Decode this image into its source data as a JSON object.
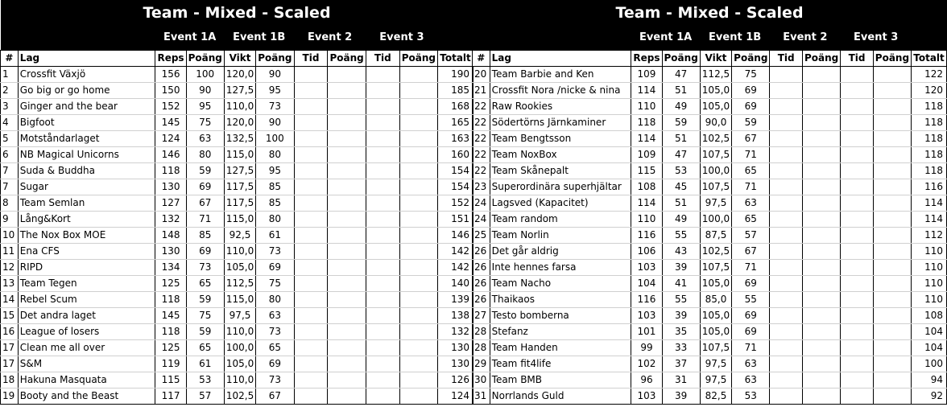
{
  "title": "Team - Mixed - Scaled",
  "events": [
    "Event 1A",
    "Event 1B",
    "Event 2",
    "Event 3"
  ],
  "columns": [
    "#",
    "Lag",
    "Reps",
    "Poäng",
    "Vikt",
    "Poäng",
    "Tid",
    "Poäng",
    "Tid",
    "Poäng",
    "Totalt"
  ],
  "left_rows": [
    [
      "1",
      "Crossfit Växjö",
      "156",
      "100",
      "120,0",
      "90",
      "",
      "",
      "",
      "",
      "190"
    ],
    [
      "2",
      "Go big or go home",
      "150",
      "90",
      "127,5",
      "95",
      "",
      "",
      "",
      "",
      "185"
    ],
    [
      "3",
      "Ginger and the bear",
      "152",
      "95",
      "110,0",
      "73",
      "",
      "",
      "",
      "",
      "168"
    ],
    [
      "4",
      "Bigfoot",
      "145",
      "75",
      "120,0",
      "90",
      "",
      "",
      "",
      "",
      "165"
    ],
    [
      "5",
      "Motståndarlaget",
      "124",
      "63",
      "132,5",
      "100",
      "",
      "",
      "",
      "",
      "163"
    ],
    [
      "6",
      "NB Magical Unicorns",
      "146",
      "80",
      "115,0",
      "80",
      "",
      "",
      "",
      "",
      "160"
    ],
    [
      "7",
      "Suda & Buddha",
      "118",
      "59",
      "127,5",
      "95",
      "",
      "",
      "",
      "",
      "154"
    ],
    [
      "7",
      "Sugar",
      "130",
      "69",
      "117,5",
      "85",
      "",
      "",
      "",
      "",
      "154"
    ],
    [
      "8",
      "Team Semlan",
      "127",
      "67",
      "117,5",
      "85",
      "",
      "",
      "",
      "",
      "152"
    ],
    [
      "9",
      "Lång&Kort",
      "132",
      "71",
      "115,0",
      "80",
      "",
      "",
      "",
      "",
      "151"
    ],
    [
      "10",
      "The Nox Box MOE",
      "148",
      "85",
      "92,5",
      "61",
      "",
      "",
      "",
      "",
      "146"
    ],
    [
      "11",
      "Ena CFS",
      "130",
      "69",
      "110,0",
      "73",
      "",
      "",
      "",
      "",
      "142"
    ],
    [
      "12",
      "RIPD",
      "134",
      "73",
      "105,0",
      "69",
      "",
      "",
      "",
      "",
      "142"
    ],
    [
      "13",
      "Team Tegen",
      "125",
      "65",
      "112,5",
      "75",
      "",
      "",
      "",
      "",
      "140"
    ],
    [
      "14",
      "Rebel Scum",
      "118",
      "59",
      "115,0",
      "80",
      "",
      "",
      "",
      "",
      "139"
    ],
    [
      "15",
      "Det andra laget",
      "145",
      "75",
      "97,5",
      "63",
      "",
      "",
      "",
      "",
      "138"
    ],
    [
      "16",
      "League of losers",
      "118",
      "59",
      "110,0",
      "73",
      "",
      "",
      "",
      "",
      "132"
    ],
    [
      "17",
      "Clean me all over",
      "125",
      "65",
      "100,0",
      "65",
      "",
      "",
      "",
      "",
      "130"
    ],
    [
      "17",
      "S&M",
      "119",
      "61",
      "105,0",
      "69",
      "",
      "",
      "",
      "",
      "130"
    ],
    [
      "18",
      "Hakuna Masquata",
      "115",
      "53",
      "110,0",
      "73",
      "",
      "",
      "",
      "",
      "126"
    ],
    [
      "19",
      "Booty and the Beast",
      "117",
      "57",
      "102,5",
      "67",
      "",
      "",
      "",
      "",
      "124"
    ]
  ],
  "right_rows": [
    [
      "20",
      "Team Barbie and Ken",
      "109",
      "47",
      "112,5",
      "75",
      "",
      "",
      "",
      "",
      "122"
    ],
    [
      "21",
      "Crossfit Nora /nicke & nina",
      "114",
      "51",
      "105,0",
      "69",
      "",
      "",
      "",
      "",
      "120"
    ],
    [
      "22",
      "Raw Rookies",
      "110",
      "49",
      "105,0",
      "69",
      "",
      "",
      "",
      "",
      "118"
    ],
    [
      "22",
      "Södertörns Järnkaminer",
      "118",
      "59",
      "90,0",
      "59",
      "",
      "",
      "",
      "",
      "118"
    ],
    [
      "22",
      "Team Bengtsson",
      "114",
      "51",
      "102,5",
      "67",
      "",
      "",
      "",
      "",
      "118"
    ],
    [
      "22",
      "Team NoxBox",
      "109",
      "47",
      "107,5",
      "71",
      "",
      "",
      "",
      "",
      "118"
    ],
    [
      "22",
      "Team Skånepalt",
      "115",
      "53",
      "100,0",
      "65",
      "",
      "",
      "",
      "",
      "118"
    ],
    [
      "23",
      "Superordinära superhjältar",
      "108",
      "45",
      "107,5",
      "71",
      "",
      "",
      "",
      "",
      "116"
    ],
    [
      "24",
      "Lagsved (Kapacitet)",
      "114",
      "51",
      "97,5",
      "63",
      "",
      "",
      "",
      "",
      "114"
    ],
    [
      "24",
      "Team random",
      "110",
      "49",
      "100,0",
      "65",
      "",
      "",
      "",
      "",
      "114"
    ],
    [
      "25",
      "Team Norlin",
      "116",
      "55",
      "87,5",
      "57",
      "",
      "",
      "",
      "",
      "112"
    ],
    [
      "26",
      "Det går aldrig",
      "106",
      "43",
      "102,5",
      "67",
      "",
      "",
      "",
      "",
      "110"
    ],
    [
      "26",
      "Inte hennes farsa",
      "103",
      "39",
      "107,5",
      "71",
      "",
      "",
      "",
      "",
      "110"
    ],
    [
      "26",
      "Team Nacho",
      "104",
      "41",
      "105,0",
      "69",
      "",
      "",
      "",
      "",
      "110"
    ],
    [
      "26",
      "Thaikaos",
      "116",
      "55",
      "85,0",
      "55",
      "",
      "",
      "",
      "",
      "110"
    ],
    [
      "27",
      "Testo bomberna",
      "103",
      "39",
      "105,0",
      "69",
      "",
      "",
      "",
      "",
      "108"
    ],
    [
      "28",
      "Stefanz",
      "101",
      "35",
      "105,0",
      "69",
      "",
      "",
      "",
      "",
      "104"
    ],
    [
      "28",
      "Team Handen",
      "99",
      "33",
      "107,5",
      "71",
      "",
      "",
      "",
      "",
      "104"
    ],
    [
      "29",
      "Team fit4life",
      "102",
      "37",
      "97,5",
      "63",
      "",
      "",
      "",
      "",
      "100"
    ],
    [
      "30",
      "Team BMB",
      "96",
      "31",
      "97,5",
      "63",
      "",
      "",
      "",
      "",
      "94"
    ],
    [
      "31",
      "Norrlands Guld",
      "103",
      "39",
      "82,5",
      "53",
      "",
      "",
      "",
      "",
      "92"
    ]
  ]
}
